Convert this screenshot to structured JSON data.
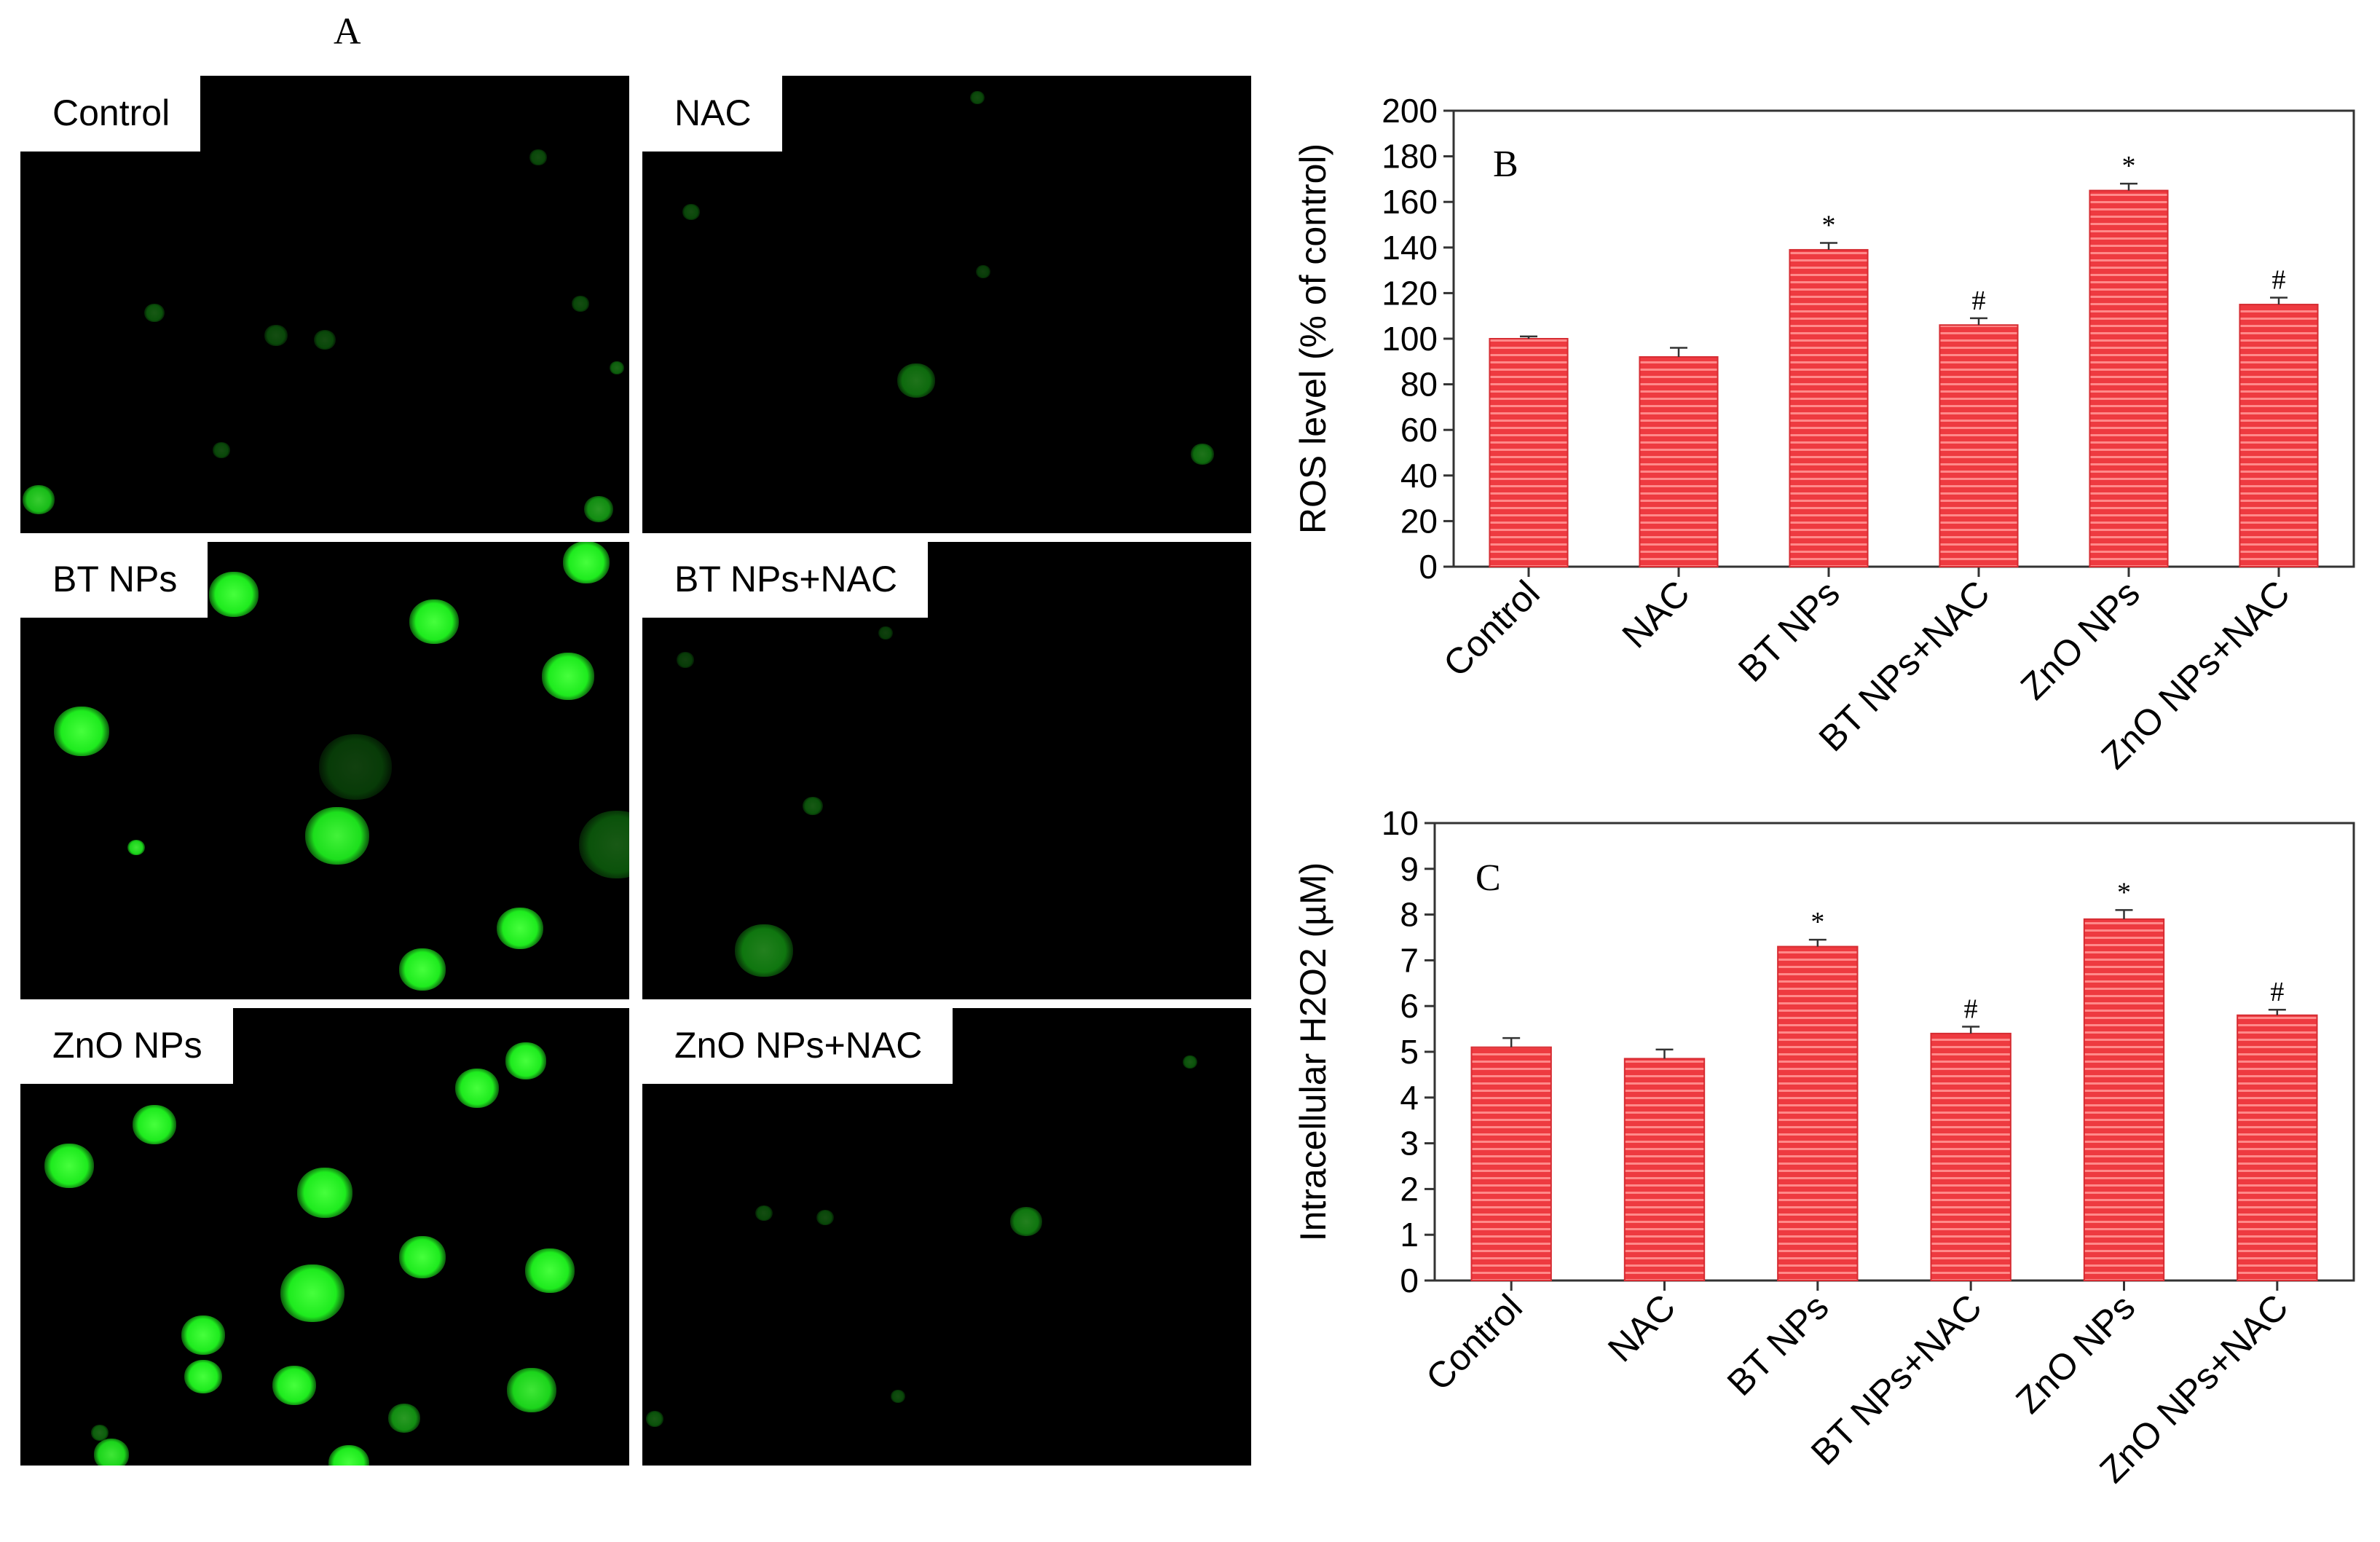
{
  "panel_a": {
    "letter": "A",
    "images": [
      {
        "label": "Control",
        "cells": [
          [
            0.03,
            0.93,
            22,
            0.8
          ],
          [
            0.95,
            0.95,
            20,
            0.6
          ],
          [
            0.22,
            0.52,
            14,
            0.35
          ],
          [
            0.42,
            0.57,
            16,
            0.3
          ],
          [
            0.5,
            0.58,
            15,
            0.3
          ],
          [
            0.85,
            0.18,
            12,
            0.3
          ],
          [
            0.92,
            0.5,
            12,
            0.3
          ],
          [
            0.33,
            0.82,
            12,
            0.3
          ],
          [
            0.98,
            0.64,
            10,
            0.4
          ]
        ]
      },
      {
        "label": "NAC",
        "cells": [
          [
            0.45,
            0.67,
            26,
            0.45
          ],
          [
            0.92,
            0.83,
            16,
            0.45
          ],
          [
            0.56,
            0.43,
            10,
            0.25
          ],
          [
            0.55,
            0.05,
            10,
            0.3
          ],
          [
            0.08,
            0.3,
            12,
            0.3
          ]
        ]
      },
      {
        "label": "BT NPs",
        "cells": [
          [
            0.35,
            0.12,
            34,
            1
          ],
          [
            0.13,
            0.08,
            32,
            0.95
          ],
          [
            0.1,
            0.42,
            38,
            1
          ],
          [
            0.68,
            0.18,
            34,
            1
          ],
          [
            0.93,
            0.05,
            32,
            1
          ],
          [
            0.9,
            0.3,
            36,
            1
          ],
          [
            0.52,
            0.65,
            44,
            0.95
          ],
          [
            0.82,
            0.85,
            32,
            1
          ],
          [
            0.66,
            0.94,
            32,
            1
          ],
          [
            0.98,
            0.67,
            52,
            0.35
          ],
          [
            0.19,
            0.67,
            12,
            0.9
          ],
          [
            0.55,
            0.5,
            50,
            0.25
          ]
        ]
      },
      {
        "label": "BT NPs+NAC",
        "cells": [
          [
            0.2,
            0.9,
            40,
            0.5
          ],
          [
            0.28,
            0.58,
            14,
            0.35
          ],
          [
            0.07,
            0.26,
            12,
            0.25
          ],
          [
            0.4,
            0.2,
            10,
            0.25
          ]
        ]
      },
      {
        "label": "ZnO NPs",
        "cells": [
          [
            0.22,
            0.26,
            30,
            1
          ],
          [
            0.08,
            0.35,
            34,
            1
          ],
          [
            0.75,
            0.18,
            30,
            1
          ],
          [
            0.83,
            0.12,
            28,
            1
          ],
          [
            0.5,
            0.41,
            38,
            1
          ],
          [
            0.66,
            0.55,
            32,
            1
          ],
          [
            0.87,
            0.58,
            34,
            1
          ],
          [
            0.48,
            0.63,
            44,
            1
          ],
          [
            0.3,
            0.72,
            30,
            1
          ],
          [
            0.45,
            0.83,
            30,
            1
          ],
          [
            0.3,
            0.81,
            26,
            1
          ],
          [
            0.54,
            1.0,
            28,
            1
          ],
          [
            0.15,
            0.98,
            24,
            0.9
          ],
          [
            0.84,
            0.84,
            34,
            0.9
          ],
          [
            0.63,
            0.9,
            22,
            0.6
          ],
          [
            0.13,
            0.93,
            12,
            0.4
          ]
        ]
      },
      {
        "label": "ZnO NPs+NAC",
        "cells": [
          [
            0.63,
            0.47,
            22,
            0.5
          ],
          [
            0.2,
            0.45,
            12,
            0.3
          ],
          [
            0.3,
            0.46,
            12,
            0.3
          ],
          [
            0.9,
            0.12,
            10,
            0.35
          ],
          [
            0.02,
            0.9,
            12,
            0.35
          ],
          [
            0.42,
            0.85,
            10,
            0.3
          ]
        ]
      }
    ]
  },
  "chart_data": [
    {
      "type": "bar",
      "panel_letter": "B",
      "title": "",
      "xlabel": "",
      "ylabel": "ROS level (% of control)",
      "categories": [
        "Control",
        "NAC",
        "BT NPs",
        "BT NPs+NAC",
        "ZnO NPs",
        "ZnO NPs+NAC"
      ],
      "values": [
        100,
        92,
        139,
        106,
        165,
        115
      ],
      "errors": [
        1,
        4,
        3,
        3,
        3,
        3
      ],
      "annotations": [
        "",
        "",
        "*",
        "#",
        "*",
        "#"
      ],
      "ylim": [
        0,
        200
      ],
      "yticks": [
        0,
        20,
        40,
        60,
        80,
        100,
        120,
        140,
        160,
        180,
        200
      ],
      "bar_color": "#ee3a40",
      "stripe_color": "#ff8a8a",
      "grid": false
    },
    {
      "type": "bar",
      "panel_letter": "C",
      "title": "",
      "xlabel": "",
      "ylabel": "Intracellular H2O2 (µM)",
      "categories": [
        "Control",
        "NAC",
        "BT NPs",
        "BT NPs+NAC",
        "ZnO NPs",
        "ZnO NPs+NAC"
      ],
      "values": [
        5.1,
        4.85,
        7.3,
        5.4,
        7.9,
        5.8
      ],
      "errors": [
        0.2,
        0.2,
        0.15,
        0.15,
        0.2,
        0.12
      ],
      "annotations": [
        "",
        "",
        "*",
        "#",
        "*",
        "#"
      ],
      "ylim": [
        0,
        10
      ],
      "yticks": [
        0,
        1,
        2,
        3,
        4,
        5,
        6,
        7,
        8,
        9,
        10
      ],
      "bar_color": "#ee3a40",
      "stripe_color": "#ff8a8a",
      "grid": false
    }
  ]
}
